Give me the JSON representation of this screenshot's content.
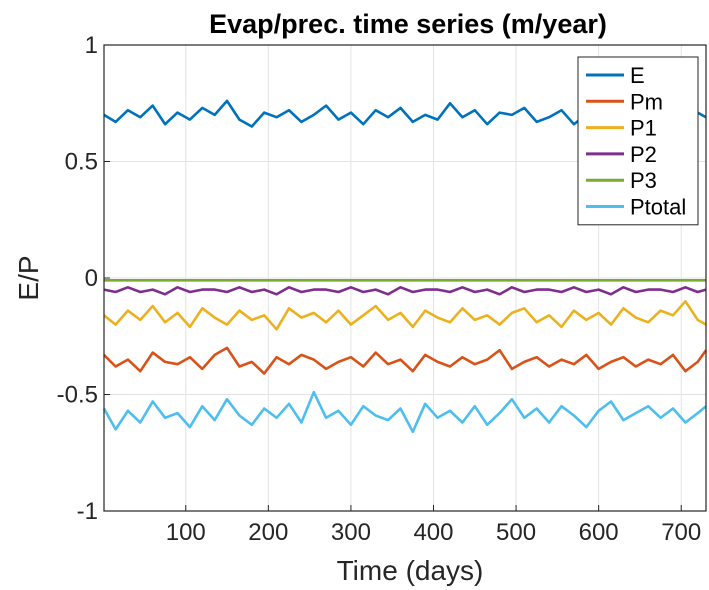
{
  "chart_data": {
    "type": "line",
    "title": "Evap/prec. time series (m/year)",
    "xlabel": "Time (days)",
    "ylabel": "E/P",
    "xlim": [
      1,
      730
    ],
    "ylim": [
      -1,
      1
    ],
    "xticks": [
      100,
      200,
      300,
      400,
      500,
      600,
      700
    ],
    "yticks": [
      -1,
      -0.5,
      0,
      0.5,
      1
    ],
    "grid": true,
    "legend": "top-right",
    "x": [
      1,
      15,
      30,
      45,
      60,
      75,
      90,
      105,
      120,
      135,
      150,
      165,
      180,
      195,
      210,
      225,
      240,
      255,
      270,
      285,
      300,
      315,
      330,
      345,
      360,
      375,
      390,
      405,
      420,
      435,
      450,
      465,
      480,
      495,
      510,
      525,
      540,
      555,
      570,
      585,
      600,
      615,
      630,
      645,
      660,
      675,
      690,
      705,
      720,
      730
    ],
    "series": [
      {
        "name": "E",
        "color": "#0072BD",
        "values": [
          0.7,
          0.67,
          0.72,
          0.69,
          0.74,
          0.66,
          0.71,
          0.68,
          0.73,
          0.7,
          0.76,
          0.68,
          0.65,
          0.71,
          0.69,
          0.72,
          0.67,
          0.7,
          0.74,
          0.68,
          0.71,
          0.66,
          0.72,
          0.69,
          0.73,
          0.67,
          0.7,
          0.68,
          0.75,
          0.69,
          0.72,
          0.66,
          0.71,
          0.7,
          0.73,
          0.67,
          0.69,
          0.72,
          0.66,
          0.7,
          0.74,
          0.68,
          0.71,
          0.67,
          0.72,
          0.69,
          0.7,
          0.67,
          0.71,
          0.69
        ]
      },
      {
        "name": "Pm",
        "color": "#D95319",
        "values": [
          -0.33,
          -0.38,
          -0.35,
          -0.4,
          -0.32,
          -0.36,
          -0.37,
          -0.34,
          -0.39,
          -0.33,
          -0.3,
          -0.38,
          -0.36,
          -0.41,
          -0.34,
          -0.37,
          -0.33,
          -0.35,
          -0.39,
          -0.36,
          -0.34,
          -0.38,
          -0.32,
          -0.37,
          -0.35,
          -0.4,
          -0.33,
          -0.36,
          -0.38,
          -0.34,
          -0.37,
          -0.35,
          -0.31,
          -0.39,
          -0.36,
          -0.34,
          -0.38,
          -0.35,
          -0.37,
          -0.33,
          -0.39,
          -0.36,
          -0.34,
          -0.38,
          -0.35,
          -0.37,
          -0.33,
          -0.4,
          -0.36,
          -0.31
        ]
      },
      {
        "name": "P1",
        "color": "#EDB120",
        "values": [
          -0.16,
          -0.2,
          -0.14,
          -0.18,
          -0.12,
          -0.19,
          -0.15,
          -0.21,
          -0.13,
          -0.17,
          -0.2,
          -0.14,
          -0.18,
          -0.16,
          -0.22,
          -0.13,
          -0.17,
          -0.15,
          -0.19,
          -0.14,
          -0.2,
          -0.16,
          -0.12,
          -0.18,
          -0.15,
          -0.21,
          -0.14,
          -0.17,
          -0.19,
          -0.13,
          -0.18,
          -0.16,
          -0.2,
          -0.15,
          -0.13,
          -0.19,
          -0.16,
          -0.21,
          -0.14,
          -0.18,
          -0.15,
          -0.2,
          -0.13,
          -0.17,
          -0.19,
          -0.14,
          -0.16,
          -0.1,
          -0.18,
          -0.2
        ]
      },
      {
        "name": "P2",
        "color": "#7E2F8E",
        "values": [
          -0.05,
          -0.06,
          -0.04,
          -0.06,
          -0.05,
          -0.07,
          -0.04,
          -0.06,
          -0.05,
          -0.05,
          -0.06,
          -0.04,
          -0.06,
          -0.05,
          -0.07,
          -0.04,
          -0.06,
          -0.05,
          -0.05,
          -0.06,
          -0.04,
          -0.06,
          -0.05,
          -0.07,
          -0.04,
          -0.06,
          -0.05,
          -0.05,
          -0.06,
          -0.04,
          -0.06,
          -0.05,
          -0.07,
          -0.04,
          -0.06,
          -0.05,
          -0.05,
          -0.06,
          -0.04,
          -0.06,
          -0.05,
          -0.07,
          -0.04,
          -0.06,
          -0.05,
          -0.05,
          -0.06,
          -0.04,
          -0.06,
          -0.05
        ]
      },
      {
        "name": "P3",
        "color": "#77AC30",
        "values": [
          -0.01,
          -0.01,
          -0.01,
          -0.01,
          -0.01,
          -0.01,
          -0.01,
          -0.01,
          -0.01,
          -0.01,
          -0.01,
          -0.01,
          -0.01,
          -0.01,
          -0.01,
          -0.01,
          -0.01,
          -0.01,
          -0.01,
          -0.01,
          -0.01,
          -0.01,
          -0.01,
          -0.01,
          -0.01,
          -0.01,
          -0.01,
          -0.01,
          -0.01,
          -0.01,
          -0.01,
          -0.01,
          -0.01,
          -0.01,
          -0.01,
          -0.01,
          -0.01,
          -0.01,
          -0.01,
          -0.01,
          -0.01,
          -0.01,
          -0.01,
          -0.01,
          -0.01,
          -0.01,
          -0.01,
          -0.01,
          -0.01,
          -0.01
        ]
      },
      {
        "name": "Ptotal",
        "color": "#4DBEEE",
        "values": [
          -0.56,
          -0.65,
          -0.57,
          -0.62,
          -0.53,
          -0.6,
          -0.58,
          -0.64,
          -0.55,
          -0.61,
          -0.52,
          -0.59,
          -0.63,
          -0.56,
          -0.6,
          -0.54,
          -0.62,
          -0.49,
          -0.6,
          -0.57,
          -0.63,
          -0.55,
          -0.59,
          -0.61,
          -0.56,
          -0.66,
          -0.54,
          -0.6,
          -0.57,
          -0.62,
          -0.55,
          -0.63,
          -0.58,
          -0.52,
          -0.6,
          -0.56,
          -0.62,
          -0.55,
          -0.59,
          -0.64,
          -0.57,
          -0.53,
          -0.61,
          -0.58,
          -0.55,
          -0.6,
          -0.56,
          -0.62,
          -0.58,
          -0.55
        ]
      }
    ]
  }
}
